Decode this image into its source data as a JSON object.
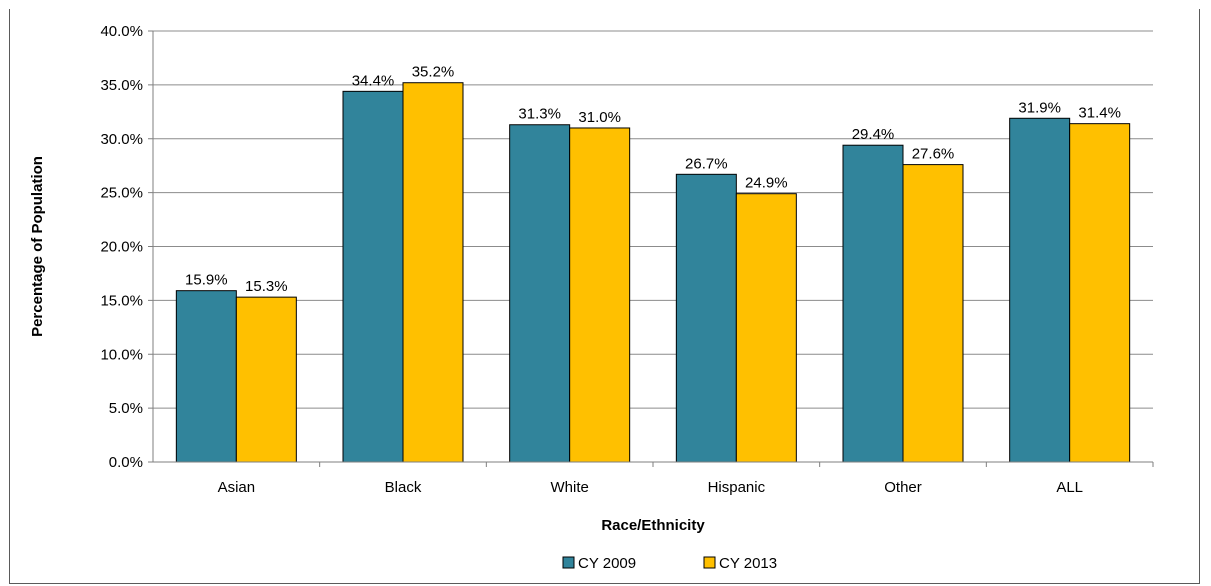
{
  "chart_data": {
    "type": "bar",
    "title": "",
    "xlabel": "Race/Ethnicity",
    "ylabel": "Percentage of Population",
    "categories": [
      "Asian",
      "Black",
      "White",
      "Hispanic",
      "Other",
      "ALL"
    ],
    "series": [
      {
        "name": "CY 2009",
        "color": "#31849b",
        "values": [
          15.9,
          34.4,
          31.3,
          26.7,
          29.4,
          31.9
        ],
        "labels": [
          "15.9%",
          "34.4%",
          "31.3%",
          "26.7%",
          "29.4%",
          "31.9%"
        ]
      },
      {
        "name": "CY 2013",
        "color": "#ffc000",
        "values": [
          15.3,
          35.2,
          31.0,
          24.9,
          27.6,
          31.4
        ],
        "labels": [
          "15.3%",
          "35.2%",
          "31.0%",
          "24.9%",
          "27.6%",
          "31.4%"
        ]
      }
    ],
    "ylim": [
      0,
      40
    ],
    "yticks": [
      0,
      5,
      10,
      15,
      20,
      25,
      30,
      35,
      40
    ],
    "ytick_labels": [
      "0.0%",
      "5.0%",
      "10.0%",
      "15.0%",
      "20.0%",
      "25.0%",
      "30.0%",
      "35.0%",
      "40.0%"
    ],
    "grid": true,
    "legend_position": "bottom"
  }
}
